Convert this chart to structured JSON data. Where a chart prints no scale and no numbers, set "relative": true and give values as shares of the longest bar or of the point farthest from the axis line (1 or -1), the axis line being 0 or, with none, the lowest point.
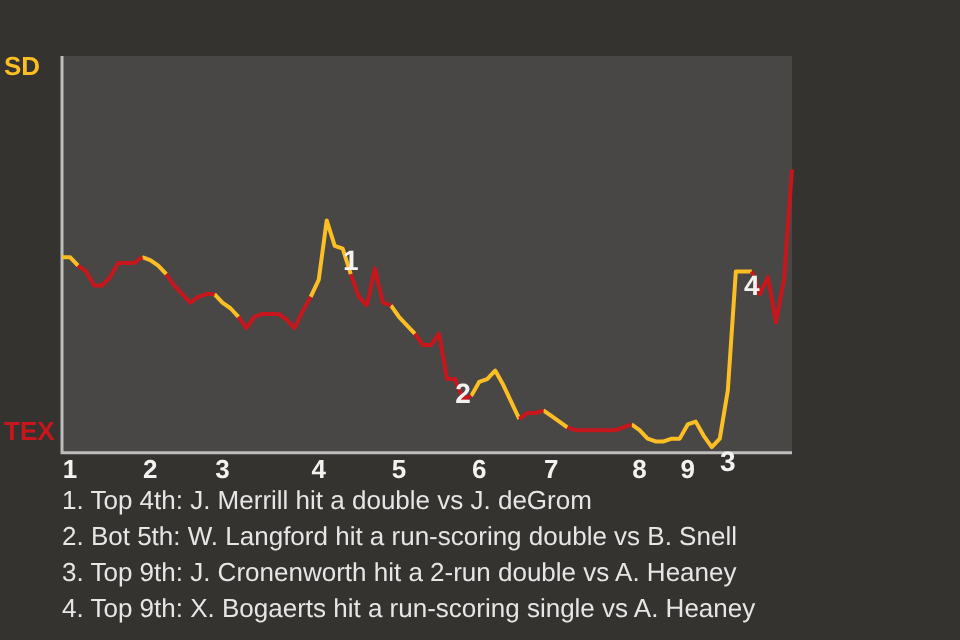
{
  "chart_data": {
    "type": "line",
    "relative": true,
    "legend": "left",
    "tick_labels": "x",
    "categories": [
      null,
      "1",
      null,
      null,
      null,
      null,
      null,
      null,
      null,
      null,
      null,
      "2",
      null,
      null,
      null,
      null,
      null,
      null,
      null,
      null,
      "3",
      null,
      null,
      null,
      null,
      null,
      null,
      null,
      null,
      null,
      null,
      null,
      "4",
      null,
      null,
      null,
      null,
      null,
      null,
      null,
      null,
      null,
      "5",
      null,
      null,
      null,
      null,
      null,
      null,
      null,
      null,
      null,
      "6",
      null,
      null,
      null,
      null,
      null,
      null,
      null,
      null,
      "7",
      null,
      null,
      null,
      null,
      null,
      null,
      null,
      null,
      null,
      null,
      "8",
      null,
      null,
      null,
      null,
      null,
      "9",
      null,
      null,
      null,
      null,
      null,
      null,
      null,
      null,
      null,
      null,
      null,
      null,
      null
    ],
    "series": [
      {
        "name": "SD",
        "color": "#fbbf24",
        "values": [
          0.69,
          0.69,
          0.66,
          null,
          null,
          null,
          null,
          null,
          null,
          null,
          0.69,
          0.68,
          0.66,
          0.63,
          null,
          null,
          null,
          null,
          null,
          0.56,
          0.53,
          0.51,
          0.48,
          null,
          null,
          null,
          null,
          null,
          null,
          null,
          null,
          0.55,
          0.61,
          0.82,
          0.73,
          0.72,
          0.63,
          null,
          null,
          null,
          null,
          0.52,
          0.48,
          0.45,
          0.42,
          null,
          null,
          null,
          null,
          null,
          null,
          0.2,
          0.25,
          0.26,
          0.29,
          0.24,
          0.18,
          0.12,
          null,
          null,
          0.15,
          0.13,
          0.11,
          0.09,
          null,
          null,
          null,
          null,
          null,
          null,
          null,
          0.1,
          0.08,
          0.05,
          0.04,
          0.04,
          0.05,
          0.05,
          0.1,
          0.11,
          0.06,
          0.02,
          0.05,
          0.22,
          0.64,
          0.64,
          0.64,
          null,
          null,
          null,
          null,
          null
        ]
      },
      {
        "name": "TEX",
        "color": "#c8161d",
        "values": [
          null,
          null,
          0.66,
          0.64,
          0.59,
          0.59,
          0.62,
          0.67,
          0.67,
          0.67,
          0.69,
          null,
          null,
          0.63,
          0.59,
          0.56,
          0.53,
          0.55,
          0.56,
          0.56,
          null,
          null,
          0.48,
          0.44,
          0.48,
          0.49,
          0.49,
          0.49,
          0.47,
          0.44,
          0.5,
          0.55,
          null,
          null,
          null,
          null,
          0.63,
          0.55,
          0.52,
          0.65,
          0.53,
          0.52,
          null,
          null,
          0.42,
          0.38,
          0.38,
          0.42,
          0.26,
          0.26,
          0.19,
          0.2,
          null,
          null,
          null,
          null,
          null,
          0.12,
          0.14,
          0.14,
          0.15,
          null,
          null,
          0.09,
          0.08,
          0.08,
          0.08,
          0.08,
          0.08,
          0.08,
          0.09,
          0.1,
          null,
          null,
          null,
          null,
          null,
          null,
          null,
          null,
          null,
          null,
          null,
          null,
          null,
          null,
          0.64,
          0.56,
          0.62,
          0.46,
          0.61,
          1
        ]
      }
    ],
    "annotations": [
      {
        "text": "1",
        "y": 0.73
      },
      {
        "text": "2",
        "y": 0.26
      },
      {
        "text": "3",
        "y": 0.02
      },
      {
        "text": "4",
        "y": 0.64
      },
      "1. Top 4th: J. Merrill hit a double vs J. deGrom",
      "2. Bot 5th: W. Langford hit a run-scoring double vs B. Snell",
      "3. Top 9th: J. Cronenworth hit a 2-run double vs A. Heaney",
      "4. Top 9th: X. Bogaerts hit a run-scoring single vs A. Heaney"
    ]
  }
}
